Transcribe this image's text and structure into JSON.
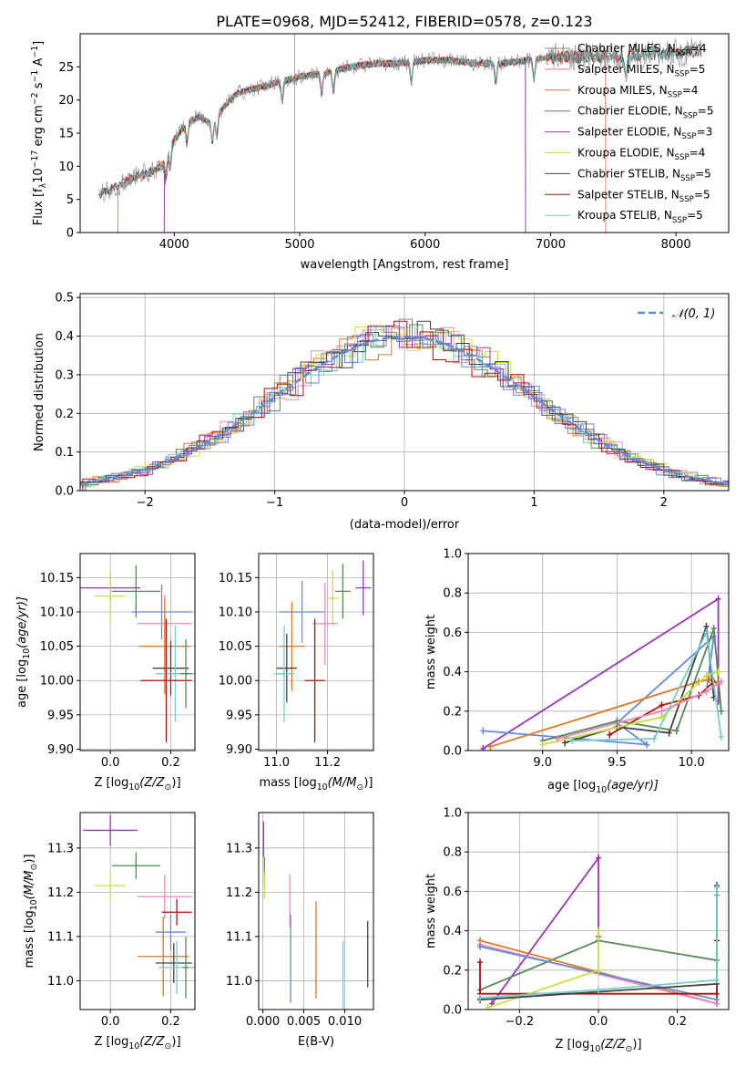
{
  "figure_title": "PLATE=0968, MJD=52412, FIBERID=0578, z=0.123",
  "colors": {
    "Chabrier MILES": "#888888",
    "Salpeter MILES": "#ee7777",
    "Kroupa MILES": "#dd7722",
    "Chabrier ELODIE": "#558855",
    "Salpeter ELODIE": "#9933bb",
    "Kroupa ELODIE": "#ccdd44",
    "Chabrier STELIB": "#444444",
    "Salpeter STELIB": "#aa1111",
    "Kroupa STELIB": "#77cccc",
    "royal": "#6688dd",
    "pink": "#ee88bb"
  },
  "chart_data": [
    {
      "id": "spectrum",
      "type": "line",
      "xlabel": "wavelength [Angstrom, rest frame]",
      "ylabel": "Flux [f",
      "ylabel_sub": "λ",
      "ylabel_rest": "10",
      "ylabel_sup": "−17",
      "ylabel_tail": " erg cm",
      "ylabel_sup2": "−2",
      "ylabel_mid": " s",
      "ylabel_sup3": "−1",
      "ylabel_end": " A",
      "ylabel_sup4": "−1",
      "ylabel_close": "]",
      "xlim": [
        3250,
        8420
      ],
      "ylim": [
        0,
        30
      ],
      "xticks": [
        4000,
        5000,
        6000,
        7000,
        8000
      ],
      "yticks": [
        0,
        5,
        10,
        15,
        20,
        25
      ],
      "legend": [
        {
          "label": "Chabrier MILES, N",
          "sub": "SSP",
          "val": "=4",
          "key": "Chabrier MILES"
        },
        {
          "label": "Salpeter MILES, N",
          "sub": "SSP",
          "val": "=5",
          "key": "Salpeter MILES"
        },
        {
          "label": "Kroupa MILES, N",
          "sub": "SSP",
          "val": "=4",
          "key": "Kroupa MILES"
        },
        {
          "label": "Chabrier ELODIE, N",
          "sub": "SSP",
          "val": "=5",
          "key": "Chabrier ELODIE"
        },
        {
          "label": "Salpeter ELODIE, N",
          "sub": "SSP",
          "val": "=3",
          "key": "Salpeter ELODIE"
        },
        {
          "label": "Kroupa ELODIE, N",
          "sub": "SSP",
          "val": "=4",
          "key": "Kroupa ELODIE"
        },
        {
          "label": "Chabrier STELIB, N",
          "sub": "SSP",
          "val": "=5",
          "key": "Chabrier STELIB"
        },
        {
          "label": "Salpeter STELIB, N",
          "sub": "SSP",
          "val": "=5",
          "key": "Salpeter STELIB"
        },
        {
          "label": "Kroupa STELIB, N",
          "sub": "SSP",
          "val": "=5",
          "key": "Kroupa STELIB"
        }
      ],
      "continuum": {
        "x": [
          3400,
          3500,
          3600,
          3700,
          3800,
          3900,
          4000,
          4100,
          4200,
          4300,
          4400,
          4500,
          4600,
          4800,
          5000,
          5200,
          5400,
          5600,
          5800,
          6000,
          6200,
          6400,
          6600,
          6800,
          7000,
          7200,
          7400,
          7600,
          7800,
          8000,
          8200
        ],
        "y": [
          5.8,
          6.5,
          7.5,
          8.5,
          9.0,
          10.0,
          14.0,
          16.5,
          17.5,
          16.5,
          19.0,
          21.0,
          21.5,
          22.5,
          23.5,
          24.0,
          25.0,
          25.5,
          25.5,
          26.0,
          26.0,
          25.5,
          25.5,
          26.0,
          26.5,
          26.5,
          26.5,
          26.5,
          27.0,
          27.0,
          27.5
        ]
      },
      "cutoffs": [
        {
          "key": "Salpeter MILES",
          "start": 3550,
          "end": 7440
        },
        {
          "key": "Kroupa MILES",
          "start": 3550,
          "end": 7440
        },
        {
          "key": "Kroupa ELODIE",
          "start": 3920,
          "end": 6800
        },
        {
          "key": "Chabrier ELODIE",
          "start": 3920,
          "end": 6800
        },
        {
          "key": "Salpeter ELODIE",
          "start": 3920,
          "end": 6800
        }
      ]
    },
    {
      "id": "histogram",
      "type": "bar",
      "xlabel": "(data-model)/error",
      "ylabel": "Normed distribution",
      "xlim": [
        -2.5,
        2.5
      ],
      "ylim": [
        0,
        0.51
      ],
      "xticks": [
        -2,
        -1,
        0,
        1,
        2
      ],
      "yticks": [
        0.0,
        0.1,
        0.2,
        0.3,
        0.4,
        0.5
      ],
      "legend_label": "𝒩(0, 1)",
      "gaussian": {
        "mean": 0,
        "sigma": 1
      }
    },
    {
      "id": "age_vs_Z",
      "type": "scatter",
      "xlabel": "Z [log",
      "xlabel_sub": "10",
      "xlabel_rest": "(Z/Z",
      "xlabel_sub2": "⊙",
      "xlabel_close": ")]",
      "ylabel": "age  [log",
      "ylabel_sub": "10",
      "ylabel_rest": "(age/yr)]",
      "xlim": [
        -0.1,
        0.28
      ],
      "ylim": [
        9.898,
        10.185
      ],
      "xticks": [
        0.0,
        0.2
      ],
      "yticks": [
        9.9,
        9.95,
        10.0,
        10.05,
        10.1,
        10.15
      ],
      "points": [
        {
          "key": "Salpeter ELODIE",
          "x": 0.0,
          "xe": 0.1,
          "y": 10.135,
          "ye": 0.02
        },
        {
          "key": "Kroupa ELODIE",
          "x": 0.0,
          "xe": 0.05,
          "y": 10.123,
          "ye": 0.037
        },
        {
          "key": "Chabrier ELODIE",
          "x": 0.085,
          "xe": 0.08,
          "y": 10.13,
          "ye": 0.038
        },
        {
          "key": "royal",
          "x": 0.17,
          "xe": 0.1,
          "y": 10.1,
          "ye": 0.04
        },
        {
          "key": "pink",
          "x": 0.18,
          "xe": 0.09,
          "y": 10.083,
          "ye": 0.042
        },
        {
          "key": "Kroupa MILES",
          "x": 0.18,
          "xe": 0.085,
          "y": 10.05,
          "ye": 0.07
        },
        {
          "key": "Chabrier STELIB",
          "x": 0.2,
          "xe": 0.06,
          "y": 10.018,
          "ye": 0.04
        },
        {
          "key": "Kroupa STELIB",
          "x": 0.215,
          "xe": 0.065,
          "y": 10.01,
          "ye": 0.07
        },
        {
          "key": "Salpeter STELIB",
          "x": 0.185,
          "xe": 0.085,
          "y": 10.0,
          "ye": 0.09
        },
        {
          "key": "Chabrier ELODIE",
          "x": 0.25,
          "xe": 0.02,
          "y": 10.01,
          "ye": 0.05
        }
      ]
    },
    {
      "id": "age_vs_mass",
      "type": "scatter",
      "xlabel": "mass [log",
      "xlabel_sub": "10",
      "xlabel_rest": "(M/M",
      "xlabel_sub2": "⊙",
      "xlabel_close": ")]",
      "xlim": [
        10.93,
        11.38
      ],
      "ylim": [
        9.898,
        10.185
      ],
      "xticks": [
        11.0,
        11.2
      ],
      "yticks": [
        9.9,
        9.95,
        10.0,
        10.05,
        10.1,
        10.15
      ],
      "points": [
        {
          "key": "Salpeter ELODIE",
          "x": 11.34,
          "xe": 0.03,
          "y": 10.135,
          "ye": 0.04
        },
        {
          "key": "Chabrier ELODIE",
          "x": 11.26,
          "xe": 0.03,
          "y": 10.13,
          "ye": 0.04
        },
        {
          "key": "Kroupa ELODIE",
          "x": 11.22,
          "xe": 0.025,
          "y": 10.12,
          "ye": 0.04
        },
        {
          "key": "royal",
          "x": 11.1,
          "xe": 0.09,
          "y": 10.1,
          "ye": 0.045
        },
        {
          "key": "pink",
          "x": 11.19,
          "xe": 0.05,
          "y": 10.083,
          "ye": 0.06
        },
        {
          "key": "Kroupa MILES",
          "x": 11.06,
          "xe": 0.05,
          "y": 10.05,
          "ye": 0.065
        },
        {
          "key": "Chabrier STELIB",
          "x": 11.04,
          "xe": 0.04,
          "y": 10.018,
          "ye": 0.05
        },
        {
          "key": "Kroupa STELIB",
          "x": 11.03,
          "xe": 0.04,
          "y": 10.01,
          "ye": 0.07
        },
        {
          "key": "Salpeter STELIB",
          "x": 11.15,
          "xe": 0.04,
          "y": 10.0,
          "ye": 0.09
        }
      ]
    },
    {
      "id": "massweight_vs_age",
      "type": "line",
      "xlabel": "age  [log",
      "xlabel_sub": "10",
      "xlabel_rest": "(age/yr)]",
      "ylabel": "mass weight",
      "xlim": [
        8.5,
        10.25
      ],
      "ylim": [
        0,
        1.0
      ],
      "xticks": [
        9.0,
        9.5,
        10.0
      ],
      "yticks": [
        0.0,
        0.2,
        0.4,
        0.6,
        0.8,
        1.0
      ],
      "series": [
        {
          "key": "Salpeter ELODIE",
          "x": [
            8.6,
            10.18,
            10.18
          ],
          "y": [
            0.01,
            0.77,
            0.25
          ]
        },
        {
          "key": "royal",
          "x": [
            8.6,
            9.7,
            9.5,
            10.15,
            10.1
          ],
          "y": [
            0.1,
            0.03,
            0.14,
            0.58,
            0.3
          ]
        },
        {
          "key": "Kroupa MILES",
          "x": [
            8.65,
            10.05,
            10.12,
            10.18
          ],
          "y": [
            0.02,
            0.35,
            0.36,
            0.34
          ]
        },
        {
          "key": "Salpeter STELIB",
          "x": [
            9.45,
            9.8,
            10.05,
            10.15
          ],
          "y": [
            0.08,
            0.23,
            0.28,
            0.35
          ]
        },
        {
          "key": "Chabrier STELIB",
          "x": [
            9.15,
            9.5,
            9.85,
            10.1,
            10.15
          ],
          "y": [
            0.04,
            0.12,
            0.09,
            0.63,
            0.27
          ]
        },
        {
          "key": "Chabrier ELODIE",
          "x": [
            9.0,
            9.5,
            9.9,
            10.15,
            10.2
          ],
          "y": [
            0.05,
            0.15,
            0.1,
            0.62,
            0.2
          ]
        },
        {
          "key": "Kroupa ELODIE",
          "x": [
            9.0,
            9.8,
            10.1,
            10.18
          ],
          "y": [
            0.03,
            0.17,
            0.38,
            0.4
          ]
        },
        {
          "key": "Kroupa STELIB",
          "x": [
            9.2,
            9.75,
            10.1,
            10.2
          ],
          "y": [
            0.05,
            0.06,
            0.6,
            0.07
          ]
        },
        {
          "key": "pink",
          "x": [
            9.1,
            9.8,
            10.1,
            10.2
          ],
          "y": [
            0.06,
            0.2,
            0.3,
            0.35
          ]
        }
      ]
    },
    {
      "id": "mass_vs_Z",
      "type": "scatter",
      "xlabel": "Z [log",
      "xlabel_sub": "10",
      "xlabel_rest": "(Z/Z",
      "xlabel_sub2": "⊙",
      "xlabel_close": ")]",
      "ylabel": "mass [log",
      "ylabel_sub": "10",
      "ylabel_rest": "(M/M",
      "ylabel_sub2": "⊙",
      "ylabel_close": ")]",
      "xlim": [
        -0.1,
        0.28
      ],
      "ylim": [
        10.935,
        11.38
      ],
      "xticks": [
        0.0,
        0.2
      ],
      "yticks": [
        11.0,
        11.1,
        11.2,
        11.3
      ],
      "points": [
        {
          "key": "Salpeter ELODIE",
          "x": 0.0,
          "xe": 0.09,
          "y": 11.34,
          "ye": 0.035
        },
        {
          "key": "Chabrier ELODIE",
          "x": 0.085,
          "xe": 0.08,
          "y": 11.26,
          "ye": 0.03
        },
        {
          "key": "Kroupa ELODIE",
          "x": 0.0,
          "xe": 0.05,
          "y": 11.215,
          "ye": 0.03
        },
        {
          "key": "pink",
          "x": 0.18,
          "xe": 0.09,
          "y": 11.19,
          "ye": 0.05
        },
        {
          "key": "Salpeter STELIB",
          "x": 0.22,
          "xe": 0.05,
          "y": 11.155,
          "ye": 0.03
        },
        {
          "key": "royal",
          "x": 0.2,
          "xe": 0.05,
          "y": 11.11,
          "ye": 0.04
        },
        {
          "key": "Kroupa MILES",
          "x": 0.175,
          "xe": 0.085,
          "y": 11.055,
          "ye": 0.09
        },
        {
          "key": "Chabrier STELIB",
          "x": 0.21,
          "xe": 0.06,
          "y": 11.04,
          "ye": 0.045
        },
        {
          "key": "Kroupa STELIB",
          "x": 0.22,
          "xe": 0.06,
          "y": 11.03,
          "ye": 0.06
        },
        {
          "key": "Chabrier ELODIE",
          "x": 0.25,
          "xe": 0.01,
          "y": 11.03,
          "ye": 0.07
        }
      ]
    },
    {
      "id": "mass_vs_ebv",
      "type": "scatter",
      "xlabel": "E(B-V)",
      "xlim": [
        -0.0005,
        0.0135
      ],
      "ylim": [
        10.935,
        11.38
      ],
      "xticks": [
        0.0,
        0.005,
        0.01
      ],
      "xtick_labels": [
        "0.000",
        "0.005",
        "0.010"
      ],
      "yticks": [
        11.0,
        11.1,
        11.2,
        11.3
      ],
      "points": [
        {
          "key": "Salpeter ELODIE",
          "x": 0.0001,
          "y": 11.32,
          "ye": 0.04
        },
        {
          "key": "Chabrier ELODIE",
          "x": 0.0002,
          "y": 11.25,
          "ye": 0.03
        },
        {
          "key": "Kroupa ELODIE",
          "x": 0.0002,
          "y": 11.215,
          "ye": 0.03
        },
        {
          "key": "pink",
          "x": 0.0033,
          "y": 11.18,
          "ye": 0.06
        },
        {
          "key": "royal",
          "x": 0.0034,
          "y": 11.05,
          "ye": 0.1
        },
        {
          "key": "Kroupa MILES",
          "x": 0.0065,
          "y": 11.07,
          "ye": 0.11
        },
        {
          "key": "Kroupa STELIB",
          "x": 0.0098,
          "y": 11.0,
          "ye": 0.09
        },
        {
          "key": "Chabrier STELIB",
          "x": 0.0128,
          "y": 11.06,
          "ye": 0.075
        }
      ]
    },
    {
      "id": "massweight_vs_Z",
      "type": "line",
      "xlabel": "Z [log",
      "xlabel_sub": "10",
      "xlabel_rest": "(Z/Z",
      "xlabel_sub2": "⊙",
      "xlabel_close": ")]",
      "ylabel": "mass weight",
      "xlim": [
        -0.33,
        0.33
      ],
      "ylim": [
        0,
        1.0
      ],
      "xticks": [
        -0.2,
        0.0,
        0.2
      ],
      "yticks": [
        0.0,
        0.2,
        0.4,
        0.6,
        0.8,
        1.0
      ],
      "series": [
        {
          "key": "Salpeter ELODIE",
          "x": [
            -0.27,
            0.0,
            0.0
          ],
          "y": [
            0.03,
            0.77,
            0.37
          ]
        },
        {
          "key": "Chabrier ELODIE",
          "x": [
            -0.3,
            0.0,
            0.3
          ],
          "y": [
            0.1,
            0.35,
            0.25
          ]
        },
        {
          "key": "Kroupa MILES",
          "x": [
            -0.3,
            0.3,
            0.3
          ],
          "y": [
            0.35,
            0.03,
            0.35
          ]
        },
        {
          "key": "pink",
          "x": [
            -0.3,
            0.3
          ],
          "y": [
            0.33,
            0.03
          ]
        },
        {
          "key": "royal",
          "x": [
            -0.3,
            0.3,
            0.3
          ],
          "y": [
            0.32,
            0.05,
            0.58
          ]
        },
        {
          "key": "Salpeter STELIB",
          "x": [
            -0.3,
            -0.3,
            0.3,
            0.3
          ],
          "y": [
            0.24,
            0.08,
            0.08,
            0.35
          ]
        },
        {
          "key": "Kroupa ELODIE",
          "x": [
            -0.28,
            0.0,
            0.0
          ],
          "y": [
            0.01,
            0.2,
            0.4
          ]
        },
        {
          "key": "Chabrier STELIB",
          "x": [
            -0.3,
            0.3,
            0.3
          ],
          "y": [
            0.05,
            0.13,
            0.63
          ]
        },
        {
          "key": "Kroupa STELIB",
          "x": [
            -0.3,
            0.0,
            0.3,
            0.3
          ],
          "y": [
            0.06,
            0.1,
            0.15,
            0.62
          ]
        }
      ]
    }
  ]
}
